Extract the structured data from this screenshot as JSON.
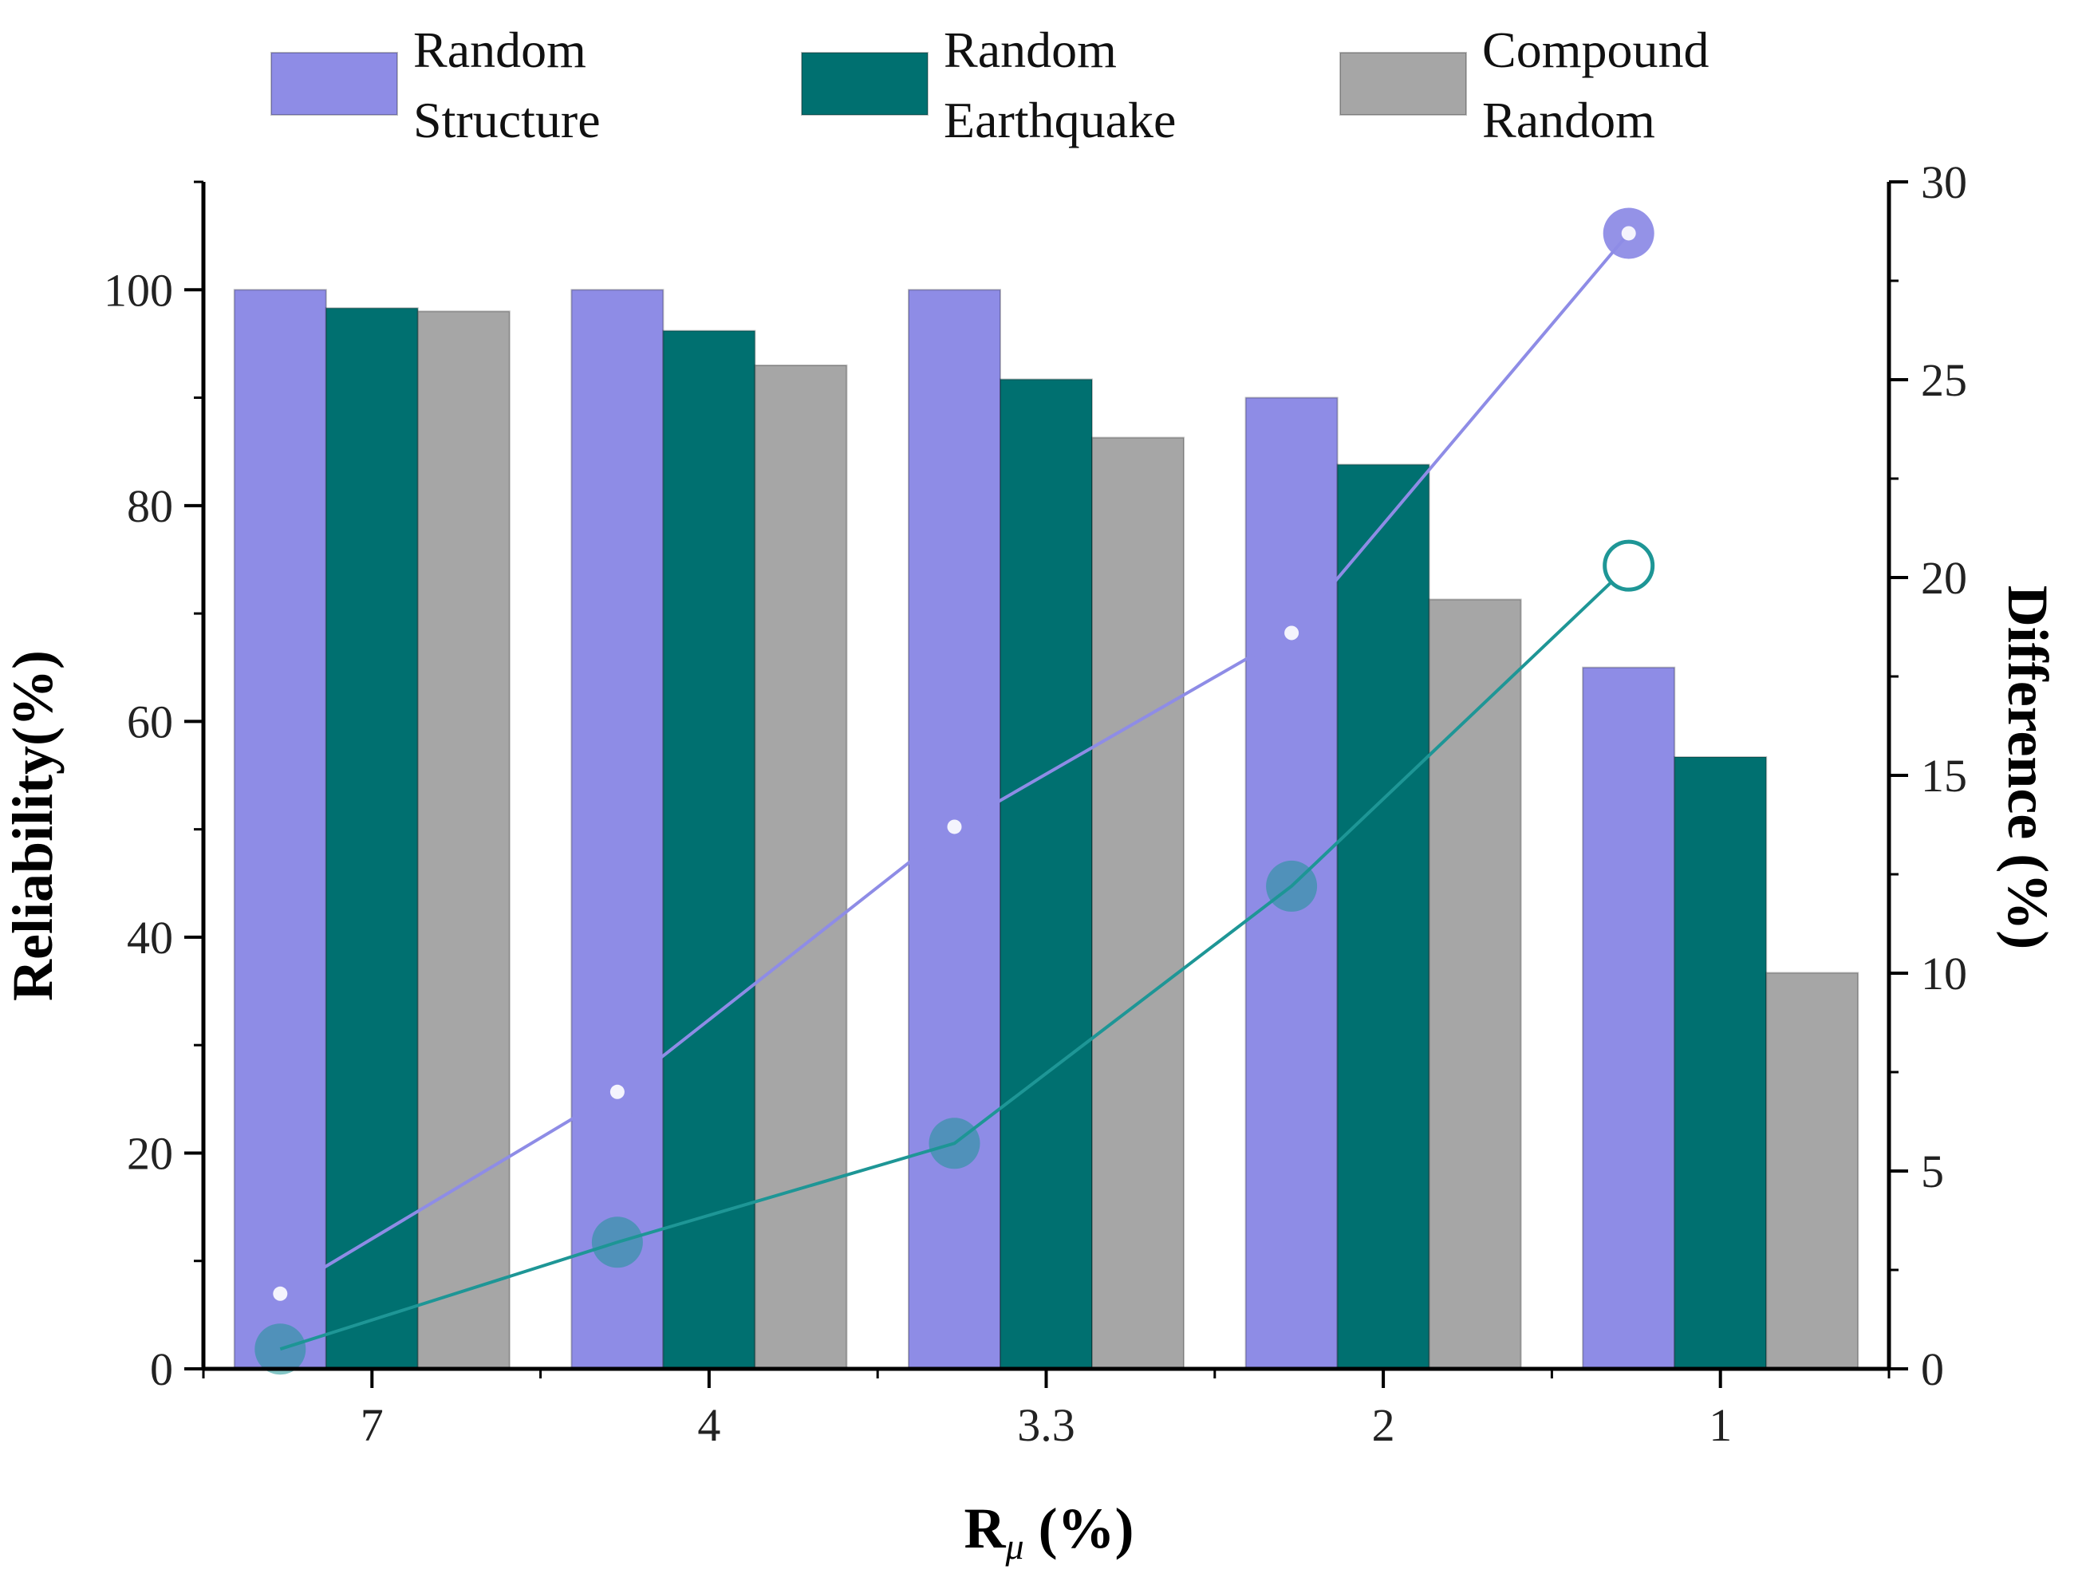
{
  "chart_data": {
    "type": "bar",
    "categories": [
      "7",
      "4",
      "3.3",
      "2",
      "1"
    ],
    "series": [
      {
        "name": "Random Structure",
        "values": [
          100,
          100,
          100,
          90,
          65
        ],
        "color": "#8e8ce6"
      },
      {
        "name": "Random Earthquake",
        "values": [
          98.3,
          96.2,
          91.7,
          83.8,
          56.7
        ],
        "color": "#007070"
      },
      {
        "name": "Compound Random",
        "values": [
          98,
          93,
          86.3,
          71.3,
          36.7
        ],
        "color": "#a6a6a6"
      }
    ],
    "difference_lines": [
      {
        "name": "Random Structure",
        "axis": "right",
        "values": [
          1.9,
          7.0,
          13.7,
          18.6,
          28.7
        ],
        "color": "#8e8ce6"
      },
      {
        "name": "Random Earthquake",
        "axis": "right",
        "values": [
          0.5,
          3.2,
          5.7,
          12.2,
          20.3
        ],
        "color": "#1e9696"
      }
    ],
    "legend_labels": [
      [
        "Random",
        "Structure"
      ],
      [
        "Random",
        "Earthquake"
      ],
      [
        "Compound",
        "Random"
      ]
    ],
    "xlabel_main": "R",
    "xlabel_sub": "μ",
    "xlabel_suffix": " (%)",
    "ylabel": "Reliability(%)",
    "y2label": "Difference (%)",
    "ylim": [
      0,
      100
    ],
    "y2lim": [
      0,
      30
    ],
    "yticks": [
      0,
      20,
      40,
      60,
      80,
      100
    ],
    "y2ticks": [
      0,
      5,
      10,
      15,
      20,
      25,
      30
    ],
    "legend_position": "top",
    "grid": false
  }
}
